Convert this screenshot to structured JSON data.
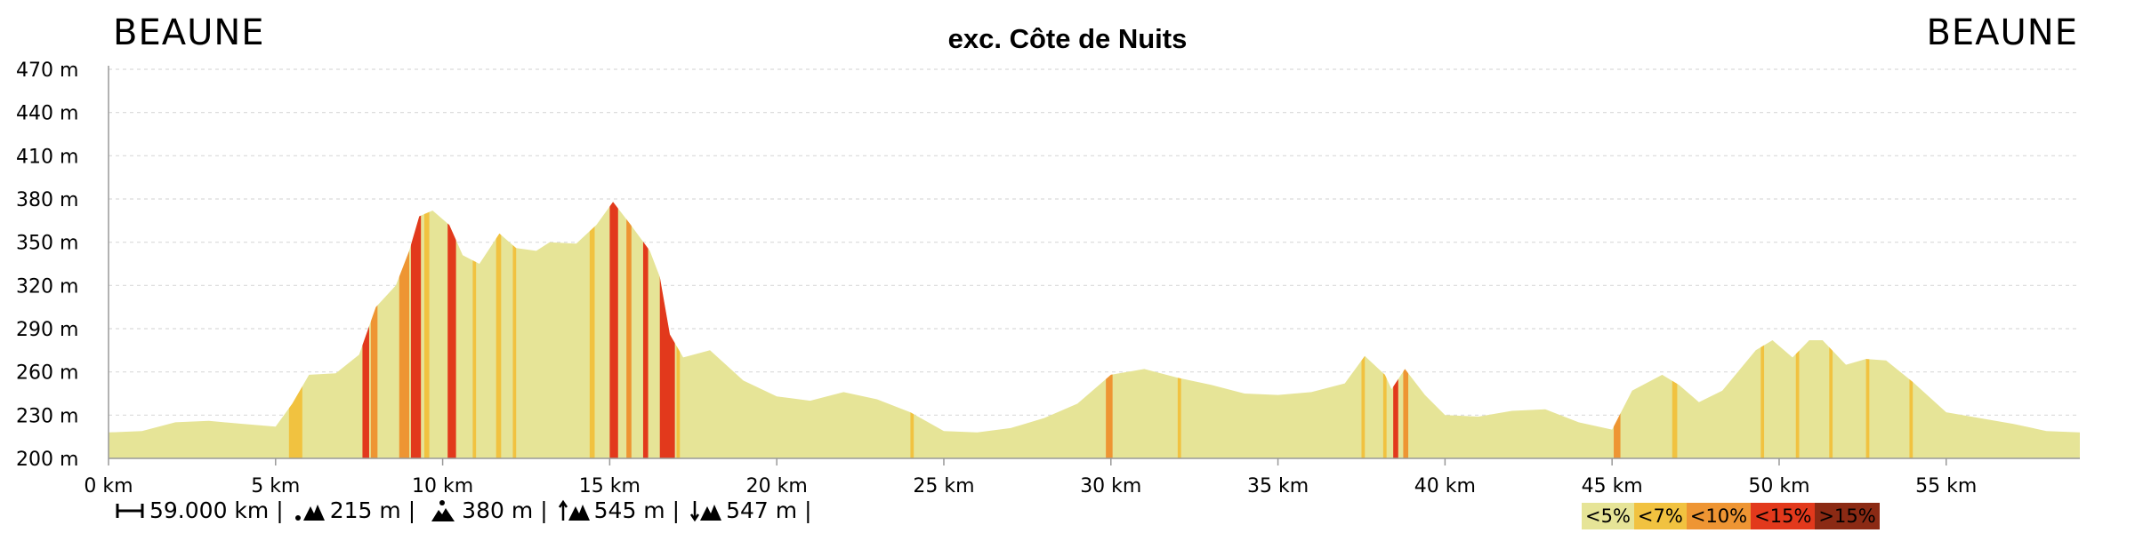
{
  "header": {
    "start": "BEAUNE",
    "end": "BEAUNE",
    "title": "exc. Côte de Nuits"
  },
  "chart_data": {
    "type": "area",
    "title": "exc. Côte de Nuits",
    "xlabel": "",
    "ylabel": "",
    "x_unit": "km",
    "y_unit": "m",
    "xlim": [
      0,
      59
    ],
    "ylim": [
      200,
      470
    ],
    "x_ticks": [
      "0 km",
      "5 km",
      "10 km",
      "15 km",
      "20 km",
      "25 km",
      "30 km",
      "35 km",
      "40 km",
      "45 km",
      "50 km",
      "55 km"
    ],
    "y_ticks": [
      "470 m",
      "440 m",
      "410 m",
      "380 m",
      "350 m",
      "320 m",
      "290 m",
      "260 m",
      "230 m",
      "200 m"
    ],
    "grid": true,
    "profile": [
      [
        0,
        218
      ],
      [
        1,
        219
      ],
      [
        2,
        225
      ],
      [
        3,
        226
      ],
      [
        4,
        224
      ],
      [
        5,
        222
      ],
      [
        5.5,
        238
      ],
      [
        6,
        258
      ],
      [
        6.8,
        259
      ],
      [
        7.5,
        272
      ],
      [
        8,
        305
      ],
      [
        8.6,
        320
      ],
      [
        9,
        344
      ],
      [
        9.3,
        368
      ],
      [
        9.7,
        372
      ],
      [
        10.2,
        362
      ],
      [
        10.6,
        341
      ],
      [
        11.1,
        335
      ],
      [
        11.7,
        356
      ],
      [
        12.2,
        346
      ],
      [
        12.8,
        344
      ],
      [
        13.2,
        350
      ],
      [
        14,
        349
      ],
      [
        14.6,
        362
      ],
      [
        15.1,
        378
      ],
      [
        15.6,
        363
      ],
      [
        16.2,
        344
      ],
      [
        16.5,
        326
      ],
      [
        16.8,
        286
      ],
      [
        17.2,
        270
      ],
      [
        18,
        275
      ],
      [
        19,
        254
      ],
      [
        20,
        243
      ],
      [
        21,
        240
      ],
      [
        22,
        246
      ],
      [
        23,
        241
      ],
      [
        24,
        232
      ],
      [
        25,
        219
      ],
      [
        26,
        218
      ],
      [
        27,
        221
      ],
      [
        28,
        228
      ],
      [
        29,
        238
      ],
      [
        30,
        258
      ],
      [
        31,
        262
      ],
      [
        32,
        256
      ],
      [
        33,
        251
      ],
      [
        34,
        245
      ],
      [
        35,
        244
      ],
      [
        36,
        246
      ],
      [
        37,
        252
      ],
      [
        37.6,
        271
      ],
      [
        38.2,
        258
      ],
      [
        38.4,
        248
      ],
      [
        38.8,
        262
      ],
      [
        39.4,
        244
      ],
      [
        40,
        230
      ],
      [
        41,
        229
      ],
      [
        42,
        233
      ],
      [
        43,
        234
      ],
      [
        44,
        225
      ],
      [
        45,
        220
      ],
      [
        45.6,
        247
      ],
      [
        46.5,
        258
      ],
      [
        47,
        251
      ],
      [
        47.6,
        239
      ],
      [
        48.3,
        247
      ],
      [
        49.3,
        275
      ],
      [
        49.8,
        282
      ],
      [
        50.4,
        270
      ],
      [
        50.9,
        282
      ],
      [
        51.3,
        282
      ],
      [
        52,
        265
      ],
      [
        52.6,
        269
      ],
      [
        53.2,
        268
      ],
      [
        54,
        253
      ],
      [
        55,
        232
      ],
      [
        56,
        228
      ],
      [
        57,
        224
      ],
      [
        58,
        219
      ],
      [
        59,
        218
      ]
    ],
    "gradient_bands": [
      {
        "from": 5.4,
        "to": 5.8,
        "class": "<7%"
      },
      {
        "from": 7.6,
        "to": 7.8,
        "class": "<15%"
      },
      {
        "from": 7.85,
        "to": 8.05,
        "class": "<10%"
      },
      {
        "from": 8.7,
        "to": 9.0,
        "class": "<10%"
      },
      {
        "from": 9.05,
        "to": 9.35,
        "class": "<15%"
      },
      {
        "from": 9.45,
        "to": 9.6,
        "class": "<7%"
      },
      {
        "from": 10.15,
        "to": 10.4,
        "class": "<15%"
      },
      {
        "from": 10.9,
        "to": 11.0,
        "class": "<7%"
      },
      {
        "from": 11.6,
        "to": 11.75,
        "class": "<7%"
      },
      {
        "from": 12.1,
        "to": 12.2,
        "class": "<7%"
      },
      {
        "from": 14.4,
        "to": 14.55,
        "class": "<7%"
      },
      {
        "from": 15.0,
        "to": 15.25,
        "class": "<15%"
      },
      {
        "from": 15.5,
        "to": 15.65,
        "class": "<10%"
      },
      {
        "from": 16.0,
        "to": 16.15,
        "class": "<15%"
      },
      {
        "from": 16.5,
        "to": 16.95,
        "class": "<15%"
      },
      {
        "from": 17.0,
        "to": 17.1,
        "class": "<7%"
      },
      {
        "from": 24.0,
        "to": 24.1,
        "class": "<7%"
      },
      {
        "from": 29.85,
        "to": 30.05,
        "class": "<10%"
      },
      {
        "from": 32.0,
        "to": 32.1,
        "class": "<7%"
      },
      {
        "from": 37.5,
        "to": 37.6,
        "class": "<7%"
      },
      {
        "from": 38.15,
        "to": 38.25,
        "class": "<7%"
      },
      {
        "from": 38.45,
        "to": 38.6,
        "class": "<15%"
      },
      {
        "from": 38.75,
        "to": 38.9,
        "class": "<10%"
      },
      {
        "from": 45.05,
        "to": 45.25,
        "class": "<10%"
      },
      {
        "from": 46.8,
        "to": 46.95,
        "class": "<7%"
      },
      {
        "from": 49.45,
        "to": 49.55,
        "class": "<7%"
      },
      {
        "from": 50.5,
        "to": 50.6,
        "class": "<7%"
      },
      {
        "from": 51.5,
        "to": 51.6,
        "class": "<7%"
      },
      {
        "from": 52.6,
        "to": 52.7,
        "class": "<7%"
      },
      {
        "from": 53.9,
        "to": 54.0,
        "class": "<7%"
      }
    ],
    "colors": {
      "<5%": "#e6e497",
      "<7%": "#f1c240",
      "<10%": "#ee9533",
      "<15%": "#e2391c",
      ">15%": "#8b2a14",
      "grid": "#d9d9d9",
      "axis": "#999999"
    }
  },
  "legend": [
    {
      "label": "<5%",
      "color": "#e6e497"
    },
    {
      "label": "<7%",
      "color": "#f1c240"
    },
    {
      "label": "<10%",
      "color": "#ee9533"
    },
    {
      "label": "<15%",
      "color": "#e2391c"
    },
    {
      "label": ">15%",
      "color": "#8b2a14"
    }
  ],
  "stats": [
    {
      "icon": "distance-icon",
      "value": "59.000 km",
      "sep": "|"
    },
    {
      "icon": "min-altitude-icon",
      "value": "215 m",
      "sep": "|"
    },
    {
      "icon": "max-altitude-icon",
      "value": "380 m",
      "sep": "|"
    },
    {
      "icon": "ascent-icon",
      "value": "545 m",
      "sep": "|"
    },
    {
      "icon": "descent-icon",
      "value": "547 m",
      "sep": "|"
    }
  ]
}
